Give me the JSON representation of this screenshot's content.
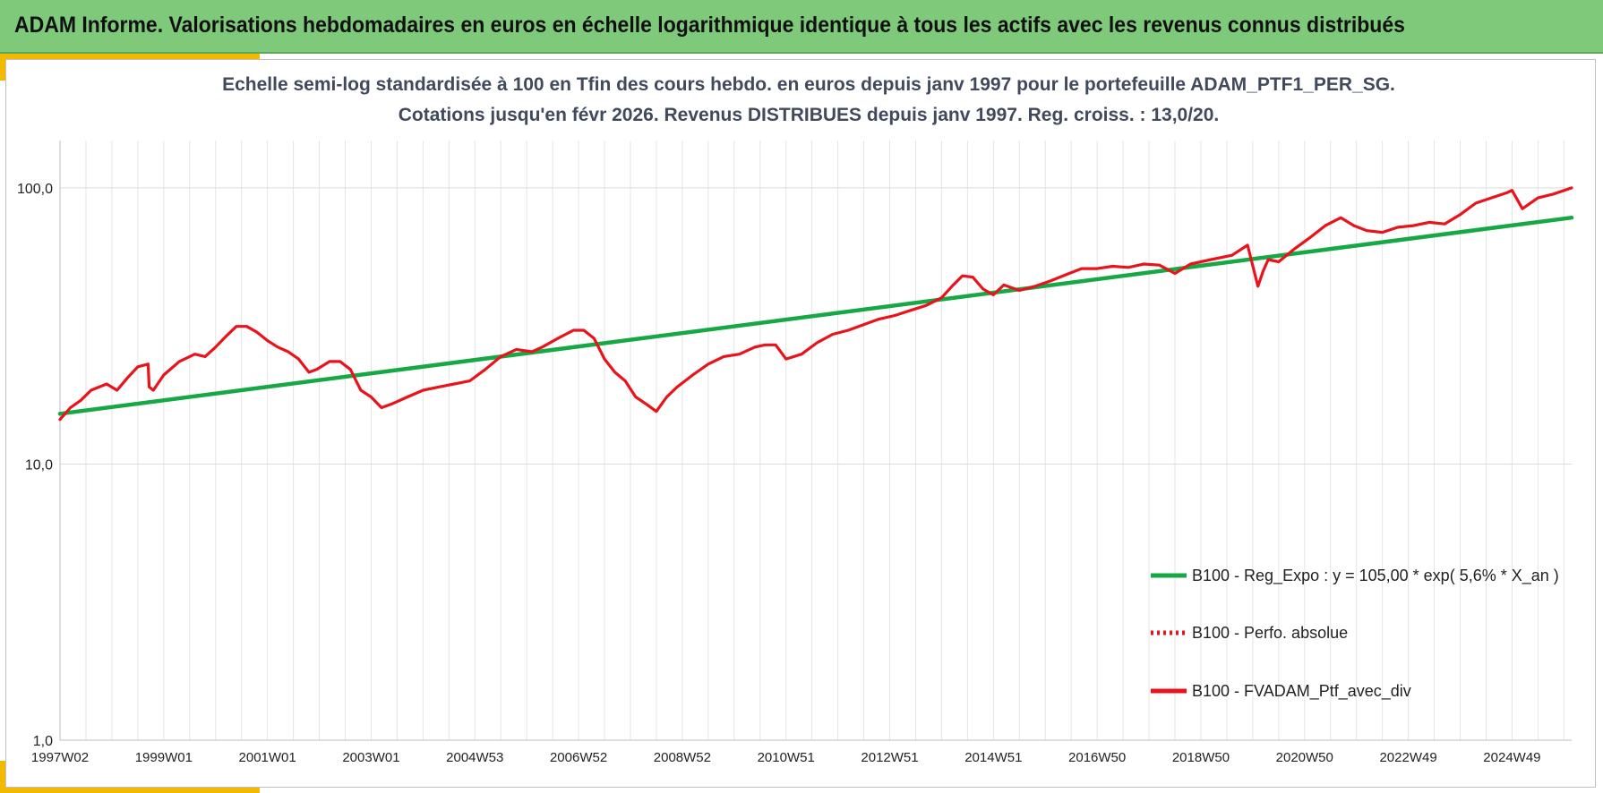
{
  "header": {
    "title": "ADAM Informe. Valorisations hebdomadaires en euros en échelle logarithmique identique à tous les actifs avec les revenus connus distribués"
  },
  "colors": {
    "banner": "#7ec97a",
    "accent": "#f3b800",
    "regression": "#17a846",
    "portfolio": "#e8131b",
    "perf_absolue": "#e8131b"
  },
  "chart_data": {
    "type": "line",
    "title_lines": [
      "Echelle semi-log standardisée à 100 en Tfin des cours hebdo. en euros depuis janv 1997 pour le portefeuille ADAM_PTF1_PER_SG.",
      "Cotations jusqu'en févr 2026. Revenus DISTRIBUES depuis janv 1997. Reg. croiss. : 13,0/20."
    ],
    "y_scale": "log",
    "ylim": [
      1,
      200
    ],
    "y_ticks": [
      1,
      10,
      100
    ],
    "y_tick_labels": [
      "1,0",
      "10,0",
      "100,0"
    ],
    "xlim": [
      1997.0,
      2026.15
    ],
    "x_ticks": [
      1997.0,
      1999.0,
      2001.0,
      2003.0,
      2005.0,
      2007.0,
      2009.0,
      2011.0,
      2013.0,
      2015.0,
      2017.0,
      2019.0,
      2021.0,
      2023.0,
      2025.0
    ],
    "x_tick_labels": [
      "1997W02",
      "1999W01",
      "2001W01",
      "2003W01",
      "2004W53",
      "2006W52",
      "2008W52",
      "2010W51",
      "2012W51",
      "2014W51",
      "2016W50",
      "2018W50",
      "2020W50",
      "2022W49",
      "2024W49"
    ],
    "grid": true,
    "legend_position": "bottom-right",
    "series": [
      {
        "name": "B100 - Reg_Expo : y = 105,00 * exp( 5,6% *  X_an )",
        "style": "solid-green",
        "x": [
          1997.0,
          2026.15
        ],
        "y": [
          15.2,
          78.0
        ]
      },
      {
        "name": "B100 - Perfo. absolue",
        "style": "dotted-red",
        "x": [],
        "y": []
      },
      {
        "name": "B100 - FVADAM_Ptf_avec_div",
        "style": "solid-red",
        "x": [
          1997.0,
          1997.2,
          1997.4,
          1997.6,
          1997.9,
          1998.1,
          1998.3,
          1998.5,
          1998.7,
          1998.72,
          1998.8,
          1999.0,
          1999.3,
          1999.6,
          1999.8,
          2000.0,
          2000.2,
          2000.4,
          2000.6,
          2000.8,
          2001.0,
          2001.2,
          2001.4,
          2001.6,
          2001.8,
          2001.95,
          2002.2,
          2002.4,
          2002.6,
          2002.8,
          2003.0,
          2003.2,
          2003.4,
          2003.7,
          2004.0,
          2004.3,
          2004.6,
          2004.9,
          2005.2,
          2005.5,
          2005.8,
          2006.1,
          2006.3,
          2006.6,
          2006.9,
          2007.1,
          2007.3,
          2007.5,
          2007.7,
          2007.9,
          2008.1,
          2008.3,
          2008.5,
          2008.7,
          2008.9,
          2009.2,
          2009.5,
          2009.8,
          2010.1,
          2010.4,
          2010.6,
          2010.8,
          2011.0,
          2011.3,
          2011.6,
          2011.9,
          2012.2,
          2012.5,
          2012.8,
          2013.1,
          2013.4,
          2013.7,
          2014.0,
          2014.2,
          2014.4,
          2014.6,
          2014.8,
          2015.0,
          2015.2,
          2015.5,
          2015.8,
          2016.1,
          2016.4,
          2016.7,
          2017.0,
          2017.3,
          2017.6,
          2017.9,
          2018.2,
          2018.5,
          2018.8,
          2019.0,
          2019.2,
          2019.6,
          2019.9,
          2020.1,
          2020.2,
          2020.3,
          2020.5,
          2020.8,
          2021.1,
          2021.4,
          2021.7,
          2021.95,
          2022.2,
          2022.5,
          2022.8,
          2023.1,
          2023.4,
          2023.7,
          2024.0,
          2024.3,
          2024.6,
          2024.9,
          2025.0,
          2025.2,
          2025.5,
          2025.8,
          2026.15
        ],
        "y": [
          14.5,
          16.0,
          17.0,
          18.5,
          19.5,
          18.5,
          20.5,
          22.5,
          23.0,
          19.0,
          18.5,
          21.0,
          23.5,
          25.0,
          24.5,
          26.5,
          29.0,
          31.5,
          31.5,
          30.0,
          28.0,
          26.5,
          25.5,
          24.0,
          21.5,
          22.0,
          23.5,
          23.5,
          22.0,
          18.5,
          17.5,
          16.0,
          16.5,
          17.5,
          18.5,
          19.0,
          19.5,
          20.0,
          22.0,
          24.5,
          26.0,
          25.5,
          26.5,
          28.5,
          30.5,
          30.5,
          28.5,
          24.0,
          21.5,
          20.0,
          17.5,
          16.5,
          15.5,
          17.5,
          19.0,
          21.0,
          23.0,
          24.5,
          25.0,
          26.5,
          27.0,
          27.0,
          24.0,
          25.0,
          27.5,
          29.5,
          30.5,
          32.0,
          33.5,
          34.5,
          36.0,
          37.5,
          40.0,
          44.0,
          48.0,
          47.5,
          43.0,
          41.0,
          44.5,
          42.5,
          44.0,
          46.0,
          48.5,
          51.0,
          51.0,
          52.0,
          51.5,
          53.0,
          52.5,
          49.0,
          53.0,
          54.0,
          55.0,
          57.0,
          62.0,
          44.0,
          50.0,
          55.0,
          54.0,
          60.0,
          66.0,
          73.0,
          78.0,
          73.0,
          70.0,
          69.0,
          72.0,
          73.0,
          75.0,
          74.0,
          80.0,
          88.0,
          92.0,
          96.0,
          98.0,
          84.0,
          92.0,
          95.0,
          100.0
        ]
      }
    ]
  }
}
